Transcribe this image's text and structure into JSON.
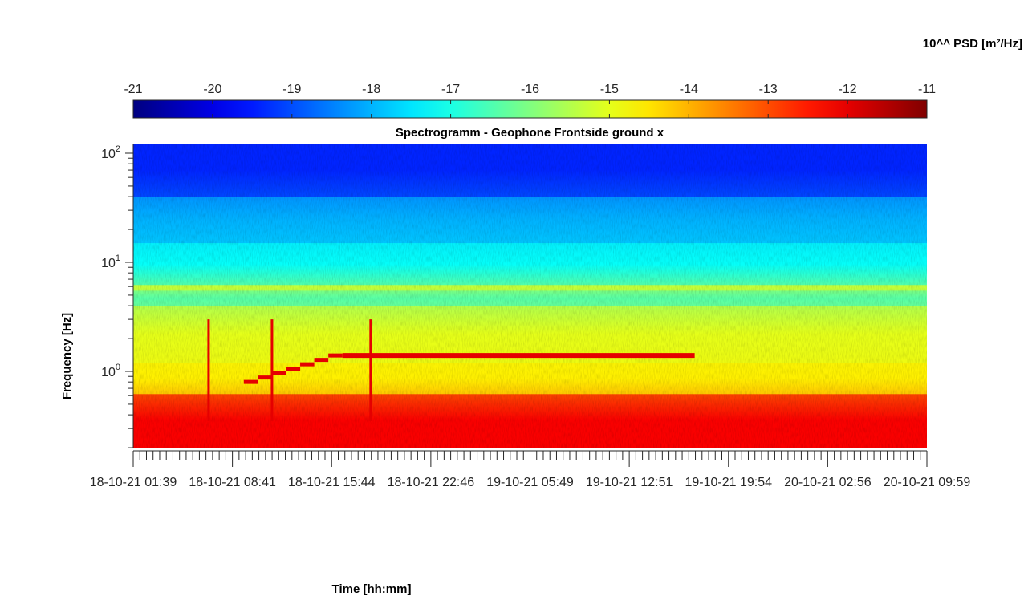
{
  "chart_data": {
    "type": "heatmap",
    "title": "Spectrogramm - Geophone Frontside ground x",
    "xlabel": "Time [hh:mm]",
    "ylabel": "Frequency [Hz]",
    "yscale": "log",
    "ylim": [
      0.2,
      125
    ],
    "y_ticks": [
      {
        "label": "10",
        "exp": "0",
        "value": 1
      },
      {
        "label": "10",
        "exp": "1",
        "value": 10
      },
      {
        "label": "10",
        "exp": "2",
        "value": 100
      }
    ],
    "x_tick_labels": [
      "18-10-21  01:39",
      "18-10-21  08:41",
      "18-10-21  15:44",
      "18-10-21  22:46",
      "19-10-21  05:49",
      "19-10-21  12:51",
      "19-10-21  19:54",
      "20-10-21  02:56",
      "20-10-21  09:59"
    ],
    "colorbar": {
      "title": "10^^ PSD [m²/Hz]",
      "ticks": [
        "-21",
        "-20",
        "-19",
        "-18",
        "-17",
        "-16",
        "-15",
        "-14",
        "-13",
        "-12",
        "-11"
      ],
      "range": [
        -21,
        -11
      ],
      "colormap": "jet"
    },
    "bands": [
      {
        "f_from": 0.2,
        "f_to": 0.62,
        "log_psd": -12.2
      },
      {
        "f_from": 0.62,
        "f_to": 1.2,
        "log_psd": -14.6
      },
      {
        "f_from": 1.2,
        "f_to": 4.0,
        "log_psd": -15.0
      },
      {
        "f_from": 4.0,
        "f_to": 5.5,
        "log_psd": -16.4
      },
      {
        "f_from": 5.5,
        "f_to": 6.2,
        "log_psd": -15.3
      },
      {
        "f_from": 6.2,
        "f_to": 15,
        "log_psd": -17.2
      },
      {
        "f_from": 15,
        "f_to": 40,
        "log_psd": -18.0
      },
      {
        "f_from": 40,
        "f_to": 125,
        "log_psd": -19.4
      }
    ],
    "features": [
      {
        "kind": "steady tone",
        "time_from": "18-10-21 16:30",
        "time_to": "19-10-21 17:30",
        "freq_hz": 1.4,
        "log_psd": -12
      },
      {
        "kind": "stepped tone",
        "time_from": "18-10-21 09:30",
        "time_to": "18-10-21 16:30",
        "freq_from_hz": 0.8,
        "freq_to_hz": 1.4,
        "log_psd": -12
      },
      {
        "kind": "broadband transient",
        "time": "18-10-21 07:00",
        "log_psd": -12
      },
      {
        "kind": "broadband transient",
        "time": "18-10-21 11:30",
        "log_psd": -12
      },
      {
        "kind": "broadband transient",
        "time": "18-10-21 18:30",
        "log_psd": -12
      }
    ]
  }
}
